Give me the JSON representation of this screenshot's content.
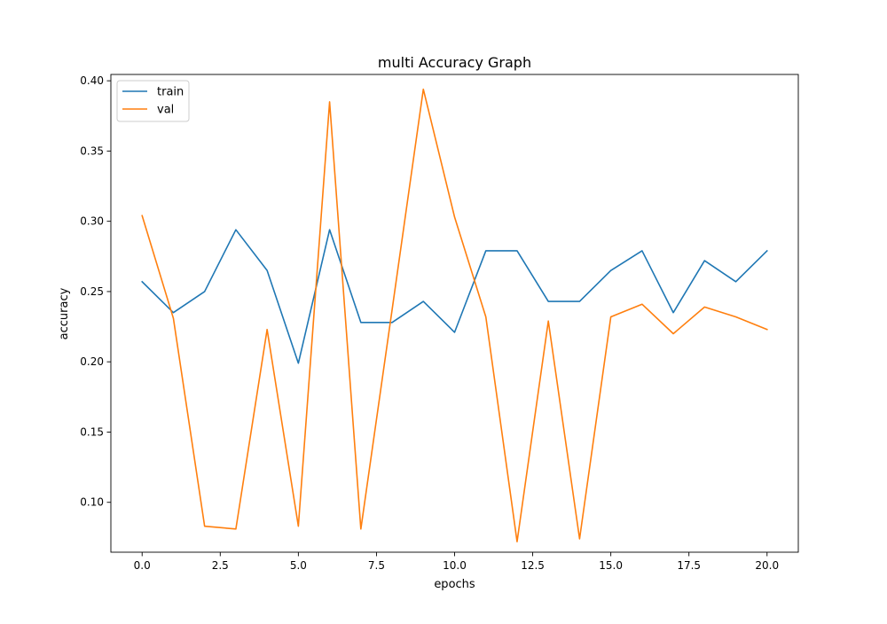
{
  "chart_data": {
    "type": "line",
    "title": "multi Accuracy Graph",
    "xlabel": "epochs",
    "ylabel": "accuracy",
    "xlim": [
      -1.0,
      21.0
    ],
    "ylim": [
      0.0645,
      0.4045
    ],
    "xticks": [
      0.0,
      2.5,
      5.0,
      7.5,
      10.0,
      12.5,
      15.0,
      17.5,
      20.0
    ],
    "xtick_labels": [
      "0.0",
      "2.5",
      "5.0",
      "7.5",
      "10.0",
      "12.5",
      "15.0",
      "17.5",
      "20.0"
    ],
    "yticks": [
      0.1,
      0.15,
      0.2,
      0.25,
      0.3,
      0.35,
      0.4
    ],
    "ytick_labels": [
      "0.10",
      "0.15",
      "0.20",
      "0.25",
      "0.30",
      "0.35",
      "0.40"
    ],
    "grid": false,
    "legend_position": "top-left",
    "x": [
      0,
      1,
      2,
      3,
      4,
      5,
      6,
      7,
      8,
      9,
      10,
      11,
      12,
      13,
      14,
      15,
      16,
      17,
      18,
      19,
      20
    ],
    "series": [
      {
        "name": "train",
        "color": "#1f77b4",
        "values": [
          0.257,
          0.235,
          0.25,
          0.294,
          0.265,
          0.199,
          0.294,
          0.228,
          0.228,
          0.243,
          0.221,
          0.279,
          0.279,
          0.243,
          0.243,
          0.265,
          0.279,
          0.235,
          0.272,
          0.257,
          0.279
        ]
      },
      {
        "name": "val",
        "color": "#ff7f0e",
        "values": [
          0.304,
          0.231,
          0.083,
          0.081,
          0.223,
          0.083,
          0.385,
          0.081,
          0.237,
          0.394,
          0.303,
          0.232,
          0.072,
          0.229,
          0.074,
          0.232,
          0.241,
          0.22,
          0.239,
          0.232,
          0.223
        ]
      }
    ]
  }
}
